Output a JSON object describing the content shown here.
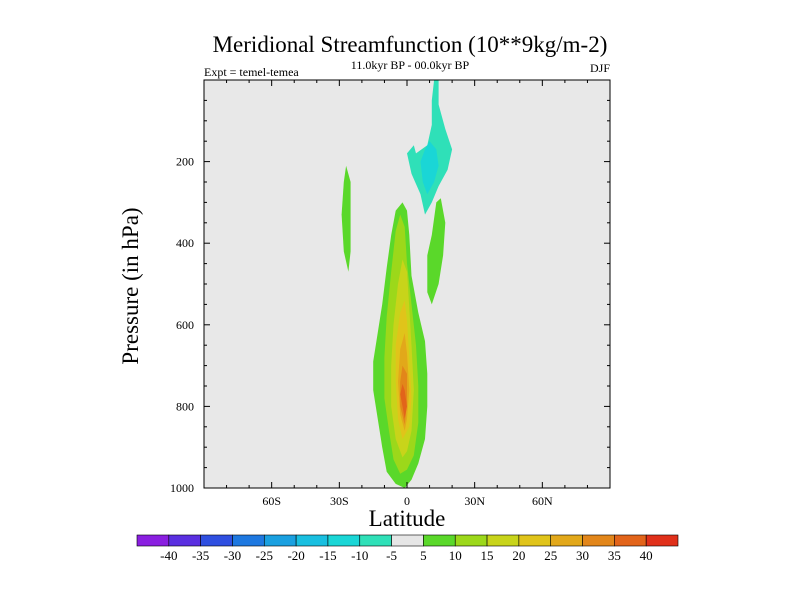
{
  "chart_data": {
    "type": "contour",
    "title": "Meridional Streamfunction (10**9kg/m-2)",
    "subtitle": "11.0kyr BP - 00.0kyr BP",
    "left_label": "Expt = temel-temea",
    "right_label": "DJF",
    "xlabel": "Latitude",
    "ylabel": "Pressure (in hPa)",
    "xlim": [
      -90,
      90
    ],
    "ylim": [
      1000,
      0
    ],
    "x_ticks": [
      {
        "value": -60,
        "label": "60S"
      },
      {
        "value": -30,
        "label": "30S"
      },
      {
        "value": 0,
        "label": "0"
      },
      {
        "value": 30,
        "label": "30N"
      },
      {
        "value": 60,
        "label": "60N"
      }
    ],
    "y_ticks": [
      {
        "value": 200,
        "label": "200"
      },
      {
        "value": 400,
        "label": "400"
      },
      {
        "value": 600,
        "label": "600"
      },
      {
        "value": 800,
        "label": "800"
      },
      {
        "value": 1000,
        "label": "1000"
      }
    ],
    "levels": [
      -40,
      -35,
      -30,
      -25,
      -20,
      -15,
      -10,
      -5,
      5,
      10,
      15,
      20,
      25,
      30,
      35,
      40
    ],
    "colorbar_labels": [
      "-40",
      "-35",
      "-30",
      "-25",
      "-20",
      "-15",
      "-10",
      "-5",
      "5",
      "10",
      "15",
      "20",
      "25",
      "30",
      "35",
      "40"
    ],
    "colorbar_colors": [
      "#8a1fe0",
      "#5a2fe0",
      "#2f4fe0",
      "#1e78e0",
      "#1aa0e0",
      "#19bfe0",
      "#1ad6d6",
      "#2fe0b8",
      "#e6e6e6",
      "#5ad82a",
      "#9cd81a",
      "#c8d41a",
      "#e0c41a",
      "#e2a81a",
      "#e2861a",
      "#e2641a",
      "#e0301a"
    ],
    "regions": [
      {
        "name": "tropical-positive-cell",
        "pairs": [
          [
            -1,
            1000
          ],
          [
            -5,
            990
          ],
          [
            -9,
            960
          ],
          [
            -11,
            900
          ],
          [
            -13,
            830
          ],
          [
            -15,
            760
          ],
          [
            -15,
            690
          ],
          [
            -13,
            620
          ],
          [
            -11,
            550
          ],
          [
            -9,
            460
          ],
          [
            -7,
            380
          ],
          [
            -5,
            320
          ],
          [
            -2,
            300
          ],
          [
            0,
            320
          ],
          [
            1,
            380
          ],
          [
            2,
            480
          ],
          [
            5,
            570
          ],
          [
            8,
            640
          ],
          [
            9,
            720
          ],
          [
            9,
            800
          ],
          [
            8,
            880
          ],
          [
            5,
            940
          ],
          [
            2,
            980
          ]
        ],
        "level": 5
      },
      {
        "name": "positive-10",
        "pairs": [
          [
            -3,
            965
          ],
          [
            -6,
            930
          ],
          [
            -8,
            860
          ],
          [
            -10,
            780
          ],
          [
            -10,
            680
          ],
          [
            -9,
            580
          ],
          [
            -7,
            470
          ],
          [
            -5,
            370
          ],
          [
            -3,
            330
          ],
          [
            -1,
            360
          ],
          [
            0,
            450
          ],
          [
            2,
            550
          ],
          [
            4,
            650
          ],
          [
            5,
            750
          ],
          [
            5,
            840
          ],
          [
            3,
            920
          ],
          [
            0,
            955
          ]
        ],
        "level": 10
      },
      {
        "name": "positive-15",
        "pairs": [
          [
            -2,
            925
          ],
          [
            -5,
            880
          ],
          [
            -7,
            800
          ],
          [
            -7,
            700
          ],
          [
            -6,
            600
          ],
          [
            -4,
            500
          ],
          [
            -2,
            440
          ],
          [
            0,
            470
          ],
          [
            1,
            560
          ],
          [
            2,
            650
          ],
          [
            3,
            760
          ],
          [
            2,
            860
          ],
          [
            0,
            910
          ]
        ],
        "level": 15
      },
      {
        "name": "positive-20",
        "pairs": [
          [
            -2,
            880
          ],
          [
            -4,
            830
          ],
          [
            -5,
            740
          ],
          [
            -5,
            650
          ],
          [
            -3,
            570
          ],
          [
            -1,
            540
          ],
          [
            0,
            590
          ],
          [
            1,
            680
          ],
          [
            2,
            780
          ],
          [
            1,
            850
          ]
        ],
        "level": 20
      },
      {
        "name": "positive-25",
        "pairs": [
          [
            -1,
            860
          ],
          [
            -3,
            820
          ],
          [
            -4,
            740
          ],
          [
            -3,
            660
          ],
          [
            -1,
            620
          ],
          [
            0,
            670
          ],
          [
            1,
            760
          ],
          [
            0,
            830
          ]
        ],
        "level": 25
      },
      {
        "name": "positive-30",
        "pairs": [
          [
            -1,
            845
          ],
          [
            -3,
            800
          ],
          [
            -3,
            740
          ],
          [
            -2,
            700
          ],
          [
            0,
            720
          ],
          [
            0,
            790
          ]
        ],
        "level": 30
      },
      {
        "name": "positive-35",
        "pairs": [
          [
            -1,
            830
          ],
          [
            -2,
            800
          ],
          [
            -3,
            770
          ],
          [
            -2,
            745
          ],
          [
            -1,
            760
          ],
          [
            0,
            800
          ]
        ],
        "level": 35
      },
      {
        "name": "southern-positive-cell",
        "pairs": [
          [
            -27,
            210
          ],
          [
            -25,
            250
          ],
          [
            -25,
            330
          ],
          [
            -25,
            420
          ],
          [
            -26,
            470
          ],
          [
            -28,
            420
          ],
          [
            -29,
            330
          ],
          [
            -28,
            250
          ]
        ],
        "level": 5
      },
      {
        "name": "northern-positive-cell",
        "pairs": [
          [
            13,
            300
          ],
          [
            11,
            380
          ],
          [
            9,
            430
          ],
          [
            9,
            520
          ],
          [
            11,
            550
          ],
          [
            14,
            500
          ],
          [
            16,
            430
          ],
          [
            17,
            350
          ],
          [
            15,
            290
          ]
        ],
        "level": 5
      },
      {
        "name": "upper-negative-cell",
        "pairs": [
          [
            12,
            0
          ],
          [
            11,
            50
          ],
          [
            11,
            110
          ],
          [
            9,
            160
          ],
          [
            4,
            180
          ],
          [
            3,
            160
          ],
          [
            0,
            180
          ],
          [
            2,
            230
          ],
          [
            6,
            280
          ],
          [
            8,
            330
          ],
          [
            11,
            300
          ],
          [
            14,
            260
          ],
          [
            18,
            220
          ],
          [
            20,
            170
          ],
          [
            17,
            120
          ],
          [
            14,
            60
          ],
          [
            14,
            0
          ]
        ],
        "level": -5
      },
      {
        "name": "negative-10",
        "pairs": [
          [
            8,
            170
          ],
          [
            6,
            200
          ],
          [
            7,
            250
          ],
          [
            9,
            280
          ],
          [
            12,
            250
          ],
          [
            14,
            210
          ],
          [
            13,
            170
          ],
          [
            10,
            150
          ]
        ],
        "level": -10
      }
    ]
  }
}
